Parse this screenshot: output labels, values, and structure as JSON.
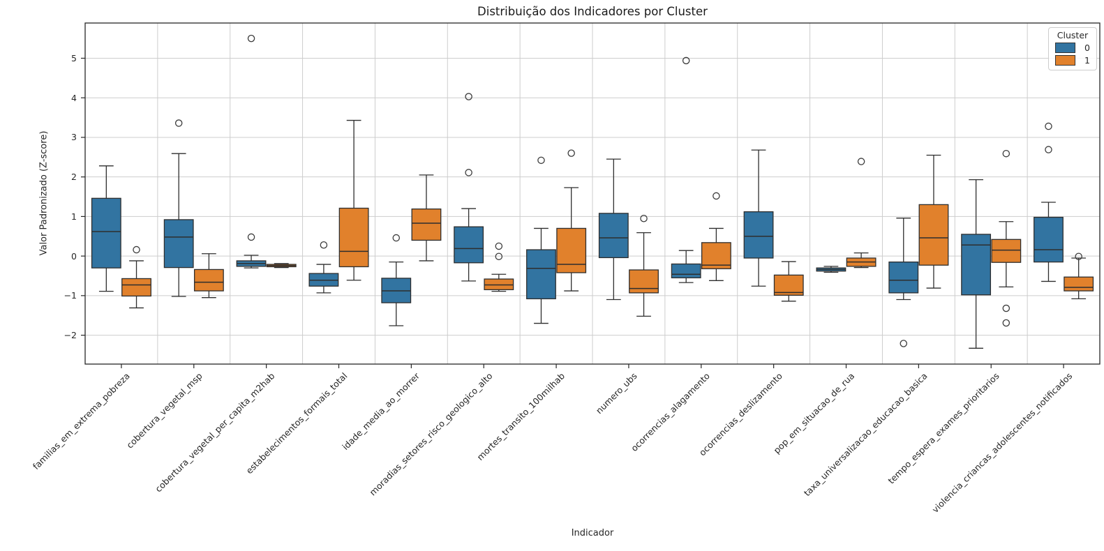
{
  "chart_data": {
    "type": "boxplot",
    "title": "Distribuição dos Indicadores por Cluster",
    "xlabel": "Indicador",
    "ylabel": "Valor Padronizado (Z-score)",
    "grid": true,
    "legend": {
      "title": "Cluster",
      "position": "top-right",
      "entries": [
        {
          "label": "0",
          "color": "#3274A1"
        },
        {
          "label": "1",
          "color": "#E1812C"
        }
      ]
    },
    "ylim": [
      -2.73,
      5.89
    ],
    "yticks": [
      -2,
      -1,
      0,
      1,
      2,
      3,
      4,
      5
    ],
    "ytick_labels": [
      "−2",
      "−1",
      "0",
      "1",
      "2",
      "3",
      "4",
      "5"
    ],
    "categories": [
      "familias_em_extrema_pobreza",
      "cobertura_vegetal_msp",
      "cobertura_vegetal_per_capita_m2hab",
      "estabelecimentos_formais_total",
      "idade_media_ao_morrer",
      "moradias_setores_risco_geologico_alto",
      "mortes_transito_100milhab",
      "numero_ubs",
      "ocorrencias_alagamento",
      "ocorrencias_deslizamento",
      "pop_em_situacao_de_rua",
      "taxa_universalizacao_educacao_basica",
      "tempo_espera_exames_prioritarios",
      "violencia_criancas_adolescentes_notificados"
    ],
    "series": [
      {
        "name": "0",
        "color": "#3274A1",
        "boxes": [
          {
            "whislo": -0.89,
            "q1": -0.3,
            "med": 0.62,
            "q3": 1.46,
            "whishi": 2.28,
            "outliers": []
          },
          {
            "whislo": -1.02,
            "q1": -0.29,
            "med": 0.48,
            "q3": 0.92,
            "whishi": 2.59,
            "outliers": [
              3.36
            ]
          },
          {
            "whislo": -0.3,
            "q1": -0.26,
            "med": -0.19,
            "q3": -0.12,
            "whishi": 0.02,
            "outliers": [
              5.5,
              0.48
            ]
          },
          {
            "whislo": -0.93,
            "q1": -0.76,
            "med": -0.61,
            "q3": -0.44,
            "whishi": -0.21,
            "outliers": [
              0.28
            ]
          },
          {
            "whislo": -1.76,
            "q1": -1.18,
            "med": -0.88,
            "q3": -0.56,
            "whishi": -0.15,
            "outliers": [
              0.46
            ]
          },
          {
            "whislo": -0.63,
            "q1": -0.17,
            "med": 0.19,
            "q3": 0.74,
            "whishi": 1.2,
            "outliers": [
              4.03,
              2.11
            ]
          },
          {
            "whislo": -1.7,
            "q1": -1.08,
            "med": -0.31,
            "q3": 0.16,
            "whishi": 0.7,
            "outliers": [
              2.42
            ]
          },
          {
            "whislo": -1.1,
            "q1": -0.04,
            "med": 0.46,
            "q3": 1.08,
            "whishi": 2.45,
            "outliers": []
          },
          {
            "whislo": -0.67,
            "q1": -0.55,
            "med": -0.46,
            "q3": -0.2,
            "whishi": 0.14,
            "outliers": [
              4.94
            ]
          },
          {
            "whislo": -0.76,
            "q1": -0.05,
            "med": 0.5,
            "q3": 1.12,
            "whishi": 2.68,
            "outliers": []
          },
          {
            "whislo": -0.41,
            "q1": -0.38,
            "med": -0.34,
            "q3": -0.3,
            "whishi": -0.26,
            "outliers": []
          },
          {
            "whislo": -1.1,
            "q1": -0.93,
            "med": -0.61,
            "q3": -0.15,
            "whishi": 0.96,
            "outliers": [
              -2.21
            ]
          },
          {
            "whislo": -2.33,
            "q1": -0.98,
            "med": 0.28,
            "q3": 0.55,
            "whishi": 1.93,
            "outliers": []
          },
          {
            "whislo": -0.64,
            "q1": -0.15,
            "med": 0.16,
            "q3": 0.98,
            "whishi": 1.36,
            "outliers": [
              3.28,
              2.69
            ]
          }
        ]
      },
      {
        "name": "1",
        "color": "#E1812C",
        "boxes": [
          {
            "whislo": -1.31,
            "q1": -1.01,
            "med": -0.73,
            "q3": -0.57,
            "whishi": -0.12,
            "outliers": [
              0.16
            ]
          },
          {
            "whislo": -1.05,
            "q1": -0.88,
            "med": -0.66,
            "q3": -0.34,
            "whishi": 0.06,
            "outliers": []
          },
          {
            "whislo": -0.29,
            "q1": -0.27,
            "med": -0.24,
            "q3": -0.21,
            "whishi": -0.19,
            "outliers": []
          },
          {
            "whislo": -0.61,
            "q1": -0.27,
            "med": 0.12,
            "q3": 1.21,
            "whishi": 3.43,
            "outliers": []
          },
          {
            "whislo": -0.12,
            "q1": 0.4,
            "med": 0.83,
            "q3": 1.19,
            "whishi": 2.05,
            "outliers": []
          },
          {
            "whislo": -0.89,
            "q1": -0.85,
            "med": -0.73,
            "q3": -0.58,
            "whishi": -0.46,
            "outliers": [
              0.25,
              -0.01
            ]
          },
          {
            "whislo": -0.88,
            "q1": -0.42,
            "med": -0.21,
            "q3": 0.7,
            "whishi": 1.73,
            "outliers": [
              2.6
            ]
          },
          {
            "whislo": -1.52,
            "q1": -0.93,
            "med": -0.82,
            "q3": -0.35,
            "whishi": 0.59,
            "outliers": [
              0.95
            ]
          },
          {
            "whislo": -0.62,
            "q1": -0.32,
            "med": -0.23,
            "q3": 0.34,
            "whishi": 0.7,
            "outliers": [
              1.52
            ]
          },
          {
            "whislo": -1.14,
            "q1": -0.99,
            "med": -0.92,
            "q3": -0.48,
            "whishi": -0.14,
            "outliers": []
          },
          {
            "whislo": -0.29,
            "q1": -0.26,
            "med": -0.15,
            "q3": -0.05,
            "whishi": 0.08,
            "outliers": [
              2.39
            ]
          },
          {
            "whislo": -0.81,
            "q1": -0.23,
            "med": 0.46,
            "q3": 1.3,
            "whishi": 2.55,
            "outliers": []
          },
          {
            "whislo": -0.78,
            "q1": -0.16,
            "med": 0.15,
            "q3": 0.42,
            "whishi": 0.87,
            "outliers": [
              2.59,
              -1.32,
              -1.69
            ]
          },
          {
            "whislo": -1.08,
            "q1": -0.88,
            "med": -0.79,
            "q3": -0.53,
            "whishi": -0.05,
            "outliers": [
              -0.01
            ]
          }
        ]
      }
    ]
  }
}
